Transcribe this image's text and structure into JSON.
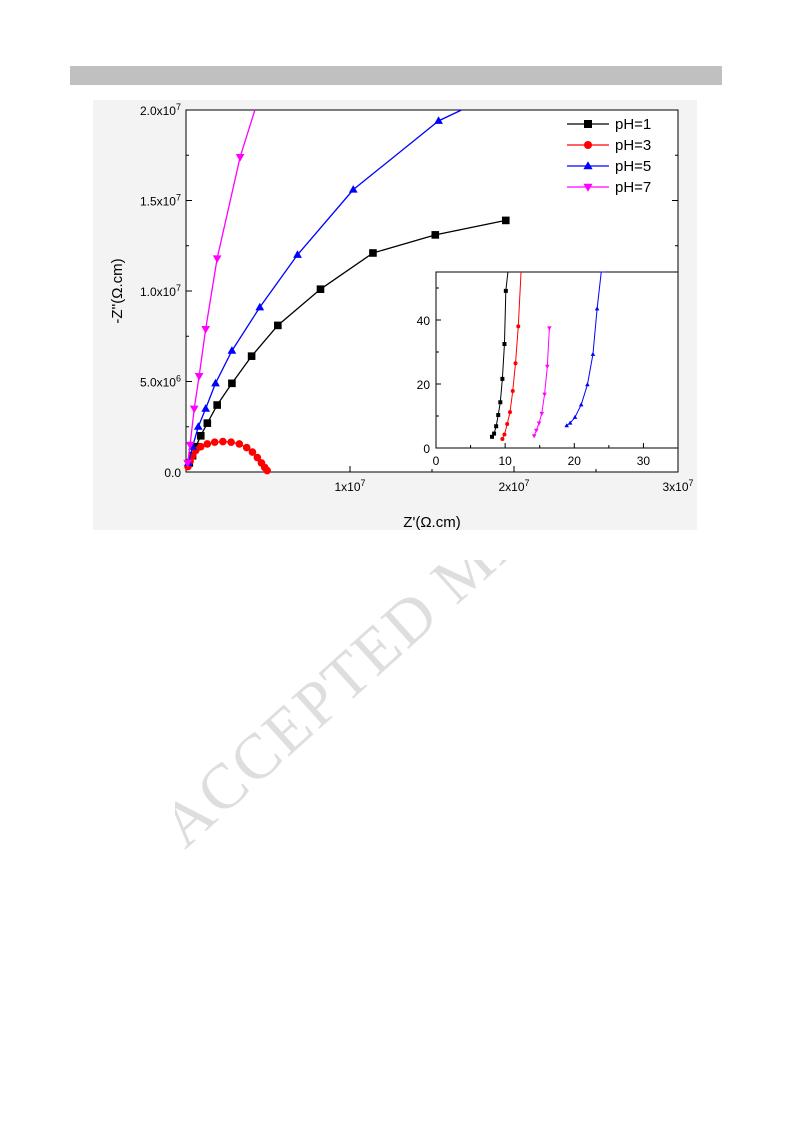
{
  "watermark": "ACCEPTED MANUSCRIPT",
  "chart_data": [
    {
      "type": "line",
      "xlabel": "Z'(Ω.cm)",
      "ylabel": "-Z''(Ω.cm)",
      "xlim": [
        0,
        30000000
      ],
      "ylim": [
        0,
        20000000
      ],
      "x_ticks": [
        {
          "value": 10000000,
          "label": "1x10",
          "exp": "7"
        },
        {
          "value": 20000000,
          "label": "2x10",
          "exp": "7"
        },
        {
          "value": 30000000,
          "label": "3x10",
          "exp": "7"
        }
      ],
      "y_ticks": [
        {
          "value": 0,
          "label": "0.0",
          "exp": ""
        },
        {
          "value": 5000000,
          "label": "5.0x10",
          "exp": "6"
        },
        {
          "value": 10000000,
          "label": "1.0x10",
          "exp": "7"
        },
        {
          "value": 15000000,
          "label": "1.5x10",
          "exp": "7"
        },
        {
          "value": 20000000,
          "label": "2.0x10",
          "exp": "7"
        }
      ],
      "legend_position": "top-right",
      "series": [
        {
          "name": "pH=1",
          "color": "#000000",
          "marker": "square",
          "x": [
            200000,
            400000,
            600000,
            900000,
            1300000,
            1900000,
            2800000,
            4000000,
            5600000,
            8200000,
            11400000,
            15200000,
            19500000
          ],
          "y": [
            500000,
            900000,
            1400000,
            2000000,
            2700000,
            3700000,
            4900000,
            6400000,
            8100000,
            10100000,
            12100000,
            13100000,
            13900000
          ]
        },
        {
          "name": "pH=3",
          "color": "#ff0000",
          "marker": "circle",
          "x": [
            120000,
            250000,
            400000,
            600000,
            900000,
            1300000,
            1750000,
            2250000,
            2750000,
            3250000,
            3700000,
            4050000,
            4350000,
            4600000,
            4800000,
            4950000
          ],
          "y": [
            300000,
            600000,
            900000,
            1200000,
            1400000,
            1550000,
            1650000,
            1680000,
            1650000,
            1550000,
            1350000,
            1100000,
            800000,
            500000,
            250000,
            80000
          ]
        },
        {
          "name": "pH=5",
          "color": "#0000ff",
          "marker": "triangle-up",
          "x": [
            150000,
            400000,
            750000,
            1200000,
            1800000,
            2800000,
            4500000,
            6800000,
            10200000,
            15400000,
            16800000
          ],
          "y": [
            500000,
            1400000,
            2500000,
            3500000,
            4900000,
            6700000,
            9100000,
            12000000,
            15600000,
            19400000,
            20000000
          ]
        },
        {
          "name": "pH=7",
          "color": "#ff00ff",
          "marker": "triangle-down",
          "x": [
            100000,
            250000,
            500000,
            800000,
            1200000,
            1900000,
            3300000,
            4200000
          ],
          "y": [
            500000,
            1500000,
            3500000,
            5300000,
            7900000,
            11800000,
            17400000,
            20000000
          ]
        }
      ]
    },
    {
      "type": "line",
      "xlim": [
        0,
        35
      ],
      "ylim": [
        0,
        55
      ],
      "x_ticks": [
        0,
        10,
        20,
        30
      ],
      "y_ticks": [
        0,
        20,
        40
      ],
      "series": [
        {
          "name": "pH=1",
          "color": "#000000",
          "marker": "square",
          "x": [
            8.1,
            8.4,
            8.7,
            9.0,
            9.3,
            9.6,
            9.9,
            10.1,
            10.4
          ],
          "y": [
            3.5,
            4.5,
            6.8,
            10.3,
            14.3,
            21.6,
            32.5,
            49.1,
            55
          ]
        },
        {
          "name": "pH=3",
          "color": "#ff0000",
          "marker": "circle",
          "x": [
            9.6,
            9.9,
            10.3,
            10.7,
            11.1,
            11.5,
            11.9,
            12.3
          ],
          "y": [
            2.8,
            4.2,
            7.5,
            11.2,
            17.8,
            26.5,
            38.0,
            55
          ]
        },
        {
          "name": "pH=5",
          "color": "#0000ff",
          "marker": "triangle-up",
          "x": [
            18.9,
            19.4,
            20.1,
            21.0,
            21.9,
            22.7,
            23.3,
            23.9,
            24.4
          ],
          "y": [
            7.0,
            7.8,
            9.6,
            13.5,
            19.8,
            29.3,
            43.5,
            55,
            55
          ]
        },
        {
          "name": "pH=7",
          "color": "#ff00ff",
          "marker": "triangle-down",
          "x": [
            14.2,
            14.5,
            14.9,
            15.3,
            15.7,
            16.1,
            16.4
          ],
          "y": [
            3.8,
            5.5,
            7.8,
            10.8,
            16.8,
            25.5,
            37.5
          ]
        }
      ]
    }
  ]
}
